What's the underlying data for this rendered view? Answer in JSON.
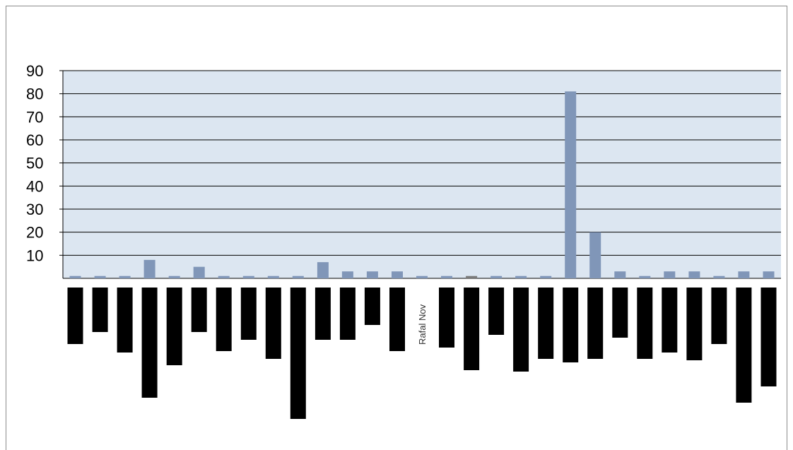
{
  "chart_data": {
    "type": "bar",
    "ylim": [
      0,
      90
    ],
    "yticks": [
      10,
      20,
      30,
      40,
      50,
      60,
      70,
      80,
      90
    ],
    "grid": true,
    "colors": {
      "plot_area": "#dce6f1",
      "bar": "#8096b8",
      "bar_highlight": "#7a7a7a",
      "label_block": "#000000",
      "gridline": "#000000"
    },
    "categories": [
      "",
      "",
      "",
      "",
      "",
      "",
      "",
      "",
      "",
      "",
      "",
      "",
      "",
      "",
      "Rafal Nov",
      "",
      "",
      "",
      "",
      "",
      "",
      "",
      "",
      "",
      "",
      "",
      "",
      "",
      ""
    ],
    "values": [
      1,
      1,
      1,
      8,
      1,
      5,
      1,
      1,
      1,
      1,
      7,
      3,
      3,
      3,
      1,
      1,
      1,
      1,
      1,
      1,
      81,
      20,
      3,
      1,
      3,
      3,
      1,
      3,
      3
    ],
    "highlight_index": 16
  }
}
